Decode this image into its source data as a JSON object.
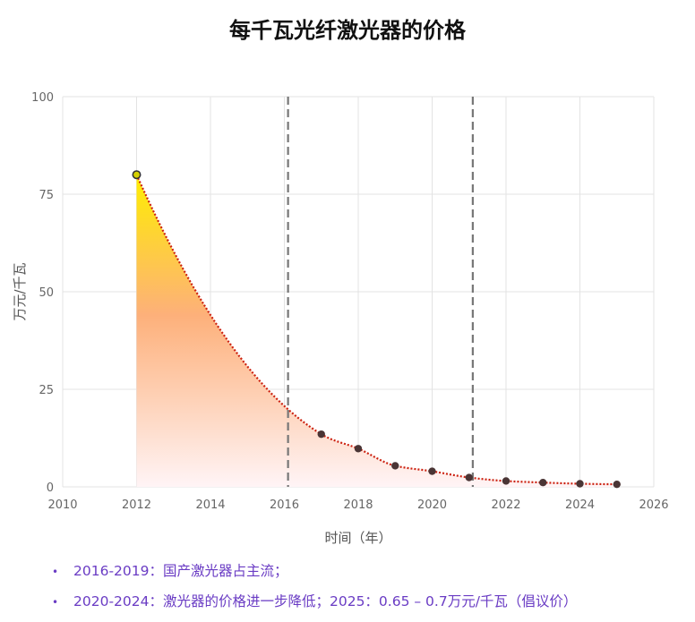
{
  "chart_data": {
    "type": "area",
    "title": "每千瓦光纤激光器的价格",
    "xlabel": "时间（年）",
    "ylabel": "万元/千瓦",
    "xlim": [
      2010,
      2026
    ],
    "ylim": [
      0,
      100
    ],
    "x_ticks": [
      "2010",
      "2012",
      "2014",
      "2016",
      "2018",
      "2020",
      "2022",
      "2024",
      "2026"
    ],
    "y_ticks": [
      "0",
      "25",
      "50",
      "75",
      "100"
    ],
    "grid": true,
    "points": [
      {
        "x": 2012,
        "y": 80
      },
      {
        "x": 2017,
        "y": 13.5
      },
      {
        "x": 2018,
        "y": 9.8
      },
      {
        "x": 2019,
        "y": 5.4
      },
      {
        "x": 2020,
        "y": 4.0
      },
      {
        "x": 2021,
        "y": 2.4
      },
      {
        "x": 2022,
        "y": 1.5
      },
      {
        "x": 2023,
        "y": 1.1
      },
      {
        "x": 2024,
        "y": 0.8
      },
      {
        "x": 2025,
        "y": 0.65
      }
    ],
    "vertical_lines": [
      2016.1,
      2021.1
    ],
    "colors": {
      "fill_top": "#ffee00",
      "fill_mid": "#fdb07a",
      "fill_bottom": "#fff4f6",
      "trend_line": "#cc2211",
      "marker": "#4a3535",
      "first_marker": "#d4d000",
      "vline": "#777777",
      "grid": "#e3e3e3"
    }
  },
  "notes": [
    "2016-2019：国产激光器占主流；",
    "2020-2024：激光器的价格进一步降低；2025：0.65 – 0.7万元/千瓦（倡议价）"
  ]
}
